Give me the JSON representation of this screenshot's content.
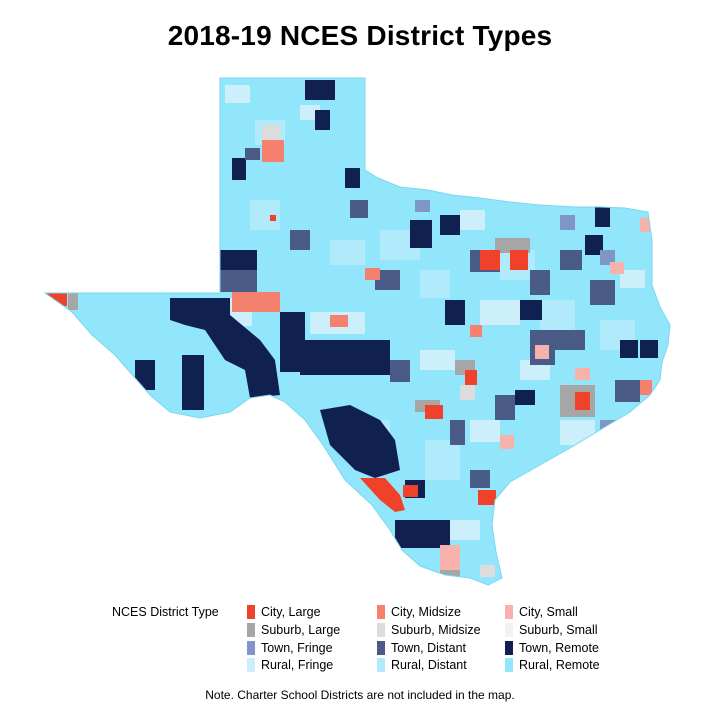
{
  "title": "2018-19 NCES District Types",
  "legend": {
    "title": "NCES District Type",
    "items": [
      {
        "label": "City, Large",
        "color": "#f0412a"
      },
      {
        "label": "City, Midsize",
        "color": "#f5806e"
      },
      {
        "label": "City, Small",
        "color": "#f7b3ab"
      },
      {
        "label": "Suburb, Large",
        "color": "#a6a6a6"
      },
      {
        "label": "Suburb, Midsize",
        "color": "#dcdcdc"
      },
      {
        "label": "Suburb, Small",
        "color": "#f2f2f2"
      },
      {
        "label": "Town, Fringe",
        "color": "#7f96c6"
      },
      {
        "label": "Town, Distant",
        "color": "#4a5b88"
      },
      {
        "label": "Town, Remote",
        "color": "#102050"
      },
      {
        "label": "Rural, Fringe",
        "color": "#cdeefb"
      },
      {
        "label": "Rural, Distant",
        "color": "#b1ebfb"
      },
      {
        "label": "Rural, Remote",
        "color": "#92e6fb"
      }
    ]
  },
  "note": "Note. Charter School Districts are not included in the map."
}
